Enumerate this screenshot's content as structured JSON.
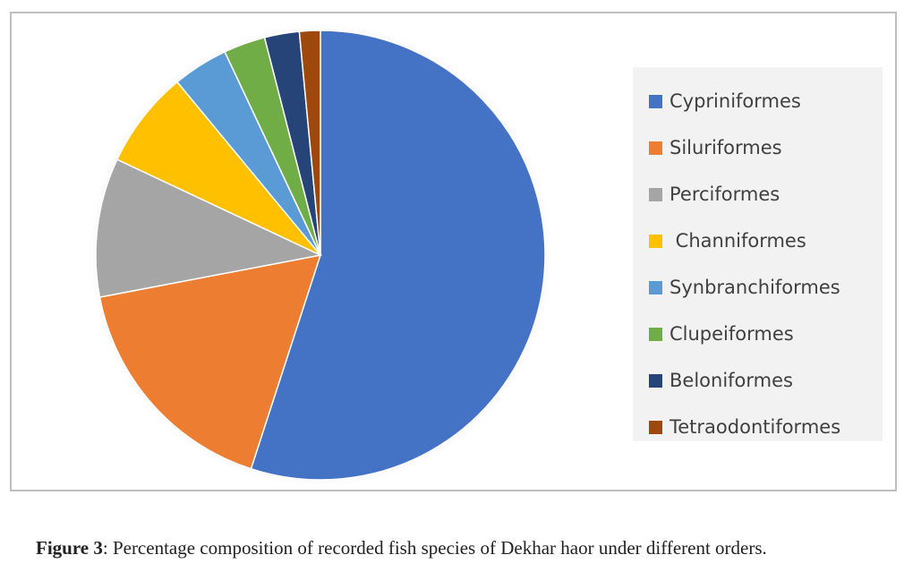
{
  "chart_data": {
    "type": "pie",
    "categories": [
      "Cypriniformes",
      "Siluriformes",
      "Perciformes",
      " Channiformes",
      "Synbranchiformes",
      "Clupeiformes",
      "Beloniformes",
      "Tetraodontiformes"
    ],
    "values": [
      55,
      17,
      10,
      7,
      4,
      3,
      2.5,
      1.5
    ],
    "colors": [
      "#4472c4",
      "#ed7d31",
      "#a5a5a5",
      "#ffc000",
      "#5b9bd5",
      "#70ad47",
      "#264478",
      "#9e480e"
    ],
    "legend_position": "right",
    "title": ""
  },
  "caption": {
    "label": "Figure 3",
    "text": ": Percentage composition of recorded fish species of Dekhar haor under different orders."
  }
}
